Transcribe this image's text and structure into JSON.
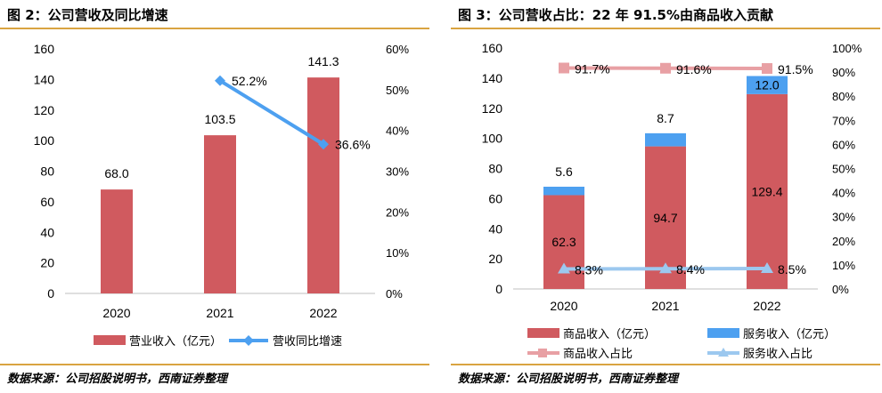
{
  "fig1": {
    "title": "图 2：公司营收及同比增速",
    "source": "数据来源：公司招股说明书，西南证券整理",
    "chart_data": {
      "type": "bar",
      "categories": [
        "2020",
        "2021",
        "2022"
      ],
      "left_axis": {
        "ylim": [
          0,
          160
        ],
        "ticks": [
          "0",
          "20",
          "40",
          "60",
          "80",
          "100",
          "120",
          "140",
          "160"
        ]
      },
      "right_axis": {
        "ylim": [
          0,
          60
        ],
        "ticks": [
          "0%",
          "10%",
          "20%",
          "30%",
          "40%",
          "50%",
          "60%"
        ]
      },
      "series": [
        {
          "name": "营业收入（亿元）",
          "kind": "bar",
          "axis": "left",
          "color": "#d05a5f",
          "values": [
            68.0,
            103.5,
            141.3
          ],
          "labels": [
            "68.0",
            "103.5",
            "141.3"
          ]
        },
        {
          "name": "营收同比增速",
          "kind": "line",
          "axis": "right",
          "color": "#4da0f0",
          "values": [
            null,
            52.2,
            36.6
          ],
          "labels": [
            "",
            "52.2%",
            "36.6%"
          ]
        }
      ],
      "legend": "bottom"
    }
  },
  "fig2": {
    "title": "图 3：公司营收占比：22 年 91.5%由商品收入贡献",
    "source": "数据来源：公司招股说明书，西南证券整理",
    "chart_data": {
      "type": "bar",
      "stacked": true,
      "categories": [
        "2020",
        "2021",
        "2022"
      ],
      "left_axis": {
        "ylim": [
          0,
          160
        ],
        "ticks": [
          "0",
          "20",
          "40",
          "60",
          "80",
          "100",
          "120",
          "140",
          "160"
        ]
      },
      "right_axis": {
        "ylim": [
          0,
          100
        ],
        "ticks": [
          "0%",
          "10%",
          "20%",
          "30%",
          "40%",
          "50%",
          "60%",
          "70%",
          "80%",
          "90%",
          "100%"
        ]
      },
      "series": [
        {
          "name": "商品收入（亿元）",
          "kind": "bar",
          "axis": "left",
          "color": "#d05a5f",
          "values": [
            62.3,
            94.7,
            129.4
          ],
          "labels": [
            "62.3",
            "94.7",
            "129.4"
          ]
        },
        {
          "name": "服务收入（亿元）",
          "kind": "bar",
          "axis": "left",
          "color": "#4da0f0",
          "values": [
            5.6,
            8.7,
            12.0
          ],
          "labels": [
            "5.6",
            "8.7",
            "12.0"
          ]
        },
        {
          "name": "商品收入占比",
          "kind": "line",
          "axis": "right",
          "color": "#e8a0a4",
          "values": [
            91.7,
            91.6,
            91.5
          ],
          "labels": [
            "91.7%",
            "91.6%",
            "91.5%"
          ]
        },
        {
          "name": "服务收入占比",
          "kind": "line",
          "axis": "right",
          "color": "#9cc8ef",
          "values": [
            8.3,
            8.4,
            8.5
          ],
          "labels": [
            "8.3%",
            "8.4%",
            "8.5%"
          ]
        }
      ],
      "legend": "bottom"
    }
  }
}
